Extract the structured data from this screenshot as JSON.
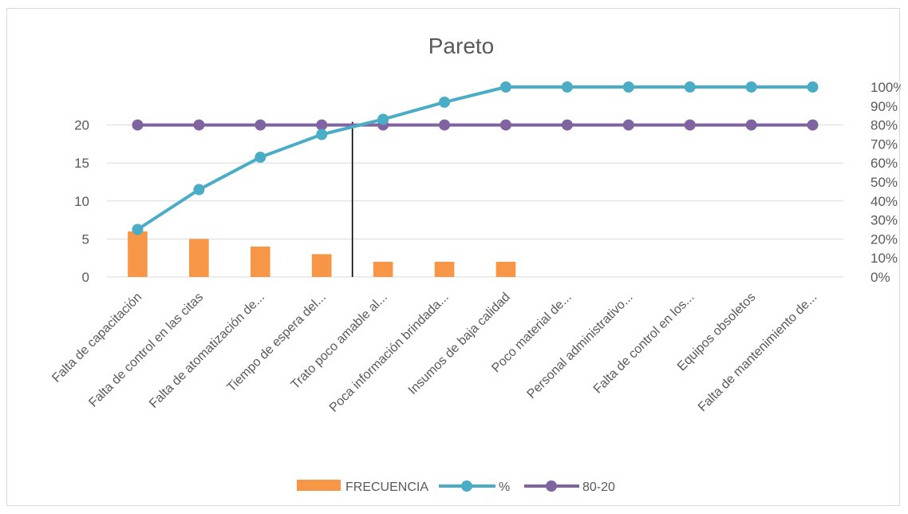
{
  "chart_data": {
    "type": "bar",
    "title": "Pareto",
    "categories": [
      "Falta de capacitación",
      "Falta de control en las citas",
      "Falta de atomatización de...",
      "Tiempo de espera del...",
      "Trato poco amable al...",
      "Poca información brindada...",
      "Insumos de baja calidad",
      "Poco material de...",
      "Personal administrativo...",
      "Falta de control en los...",
      "Equipos obsoletos",
      "Falta de mantenimiento de..."
    ],
    "series": [
      {
        "name": "FRECUENCIA",
        "type": "bar",
        "axis": "left",
        "color": "#F79646",
        "values": [
          6,
          5,
          4,
          3,
          2,
          2,
          2,
          0,
          0,
          0,
          0,
          0
        ]
      },
      {
        "name": "%",
        "type": "line",
        "axis": "right",
        "color": "#4BACC6",
        "values": [
          0.25,
          0.46,
          0.63,
          0.75,
          0.83,
          0.92,
          1.0,
          1.0,
          1.0,
          1.0,
          1.0,
          1.0
        ]
      },
      {
        "name": "80-20",
        "type": "line",
        "axis": "right",
        "color": "#8064A2",
        "values": [
          0.8,
          0.8,
          0.8,
          0.8,
          0.8,
          0.8,
          0.8,
          0.8,
          0.8,
          0.8,
          0.8,
          0.8
        ]
      }
    ],
    "y_left": {
      "ylim": [
        0,
        20
      ],
      "ticks": [
        "0",
        "5",
        "10",
        "15",
        "20"
      ]
    },
    "y_right": {
      "ylim": [
        0,
        1.0
      ],
      "ticks": [
        "0%",
        "10%",
        "20%",
        "30%",
        "40%",
        "50%",
        "60%",
        "70%",
        "80%",
        "90%",
        "100%"
      ]
    },
    "grid": true,
    "legend": "bottom",
    "cutoff_marker_between": [
      "Tiempo de espera del...",
      "Trato poco amable al..."
    ]
  }
}
